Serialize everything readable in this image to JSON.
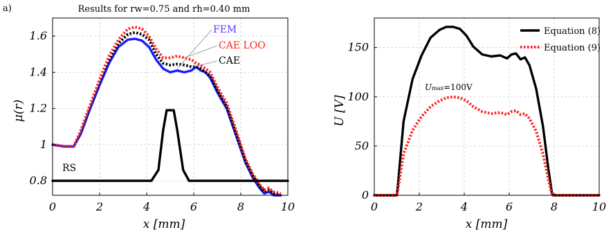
{
  "panel_label": "a)",
  "chart_data": [
    {
      "type": "line",
      "title": "Results for rw=0.75 and rh=0.40 mm",
      "xlabel": "x [mm]",
      "ylabel": "μ(r)",
      "xlim": [
        0,
        10
      ],
      "ylim": [
        0.72,
        1.7
      ],
      "xticks": [
        "0",
        "2",
        "4",
        "6",
        "8",
        "10"
      ],
      "yticks": [
        "0.8",
        "1",
        "1.2",
        "1.4",
        "1.6"
      ],
      "grid": true,
      "series": [
        {
          "name": "FEM",
          "color": "#1a1aff",
          "style": "solid",
          "label_color": "#6633ff",
          "x": [
            0,
            0.5,
            0.9,
            1.2,
            1.6,
            2.0,
            2.4,
            2.8,
            3.2,
            3.5,
            3.8,
            4.1,
            4.4,
            4.7,
            5.0,
            5.3,
            5.6,
            5.9,
            6.1,
            6.3,
            6.5,
            6.7,
            7.0,
            7.4,
            7.8,
            8.2,
            8.5,
            8.8,
            9.0,
            9.2,
            9.4,
            9.7
          ],
          "y": [
            1.0,
            0.99,
            0.99,
            1.06,
            1.2,
            1.33,
            1.45,
            1.54,
            1.58,
            1.585,
            1.575,
            1.54,
            1.47,
            1.42,
            1.4,
            1.41,
            1.4,
            1.41,
            1.43,
            1.41,
            1.4,
            1.37,
            1.29,
            1.2,
            1.05,
            0.9,
            0.82,
            0.76,
            0.73,
            0.74,
            0.72,
            0.72
          ]
        },
        {
          "name": "CAE",
          "color": "#000000",
          "style": "dotted",
          "label_color": "#000000",
          "x": [
            0,
            0.5,
            0.9,
            1.2,
            1.6,
            2.0,
            2.4,
            2.8,
            3.2,
            3.5,
            3.8,
            4.1,
            4.4,
            4.7,
            5.0,
            5.3,
            5.6,
            5.9,
            6.1,
            6.3,
            6.5,
            6.7,
            7.0,
            7.4,
            7.8,
            8.2,
            8.5,
            8.8,
            9.0,
            9.2,
            9.4,
            9.7
          ],
          "y": [
            1.0,
            0.99,
            0.99,
            1.07,
            1.21,
            1.35,
            1.47,
            1.56,
            1.61,
            1.62,
            1.61,
            1.58,
            1.5,
            1.45,
            1.44,
            1.445,
            1.44,
            1.43,
            1.43,
            1.42,
            1.4,
            1.38,
            1.3,
            1.21,
            1.06,
            0.91,
            0.83,
            0.77,
            0.74,
            0.75,
            0.73,
            0.72
          ]
        },
        {
          "name": "CAE LOO",
          "color": "#ff2020",
          "style": "dotted",
          "label_color": "#ff2020",
          "x": [
            0,
            0.5,
            0.9,
            1.2,
            1.6,
            2.0,
            2.4,
            2.8,
            3.2,
            3.5,
            3.8,
            4.1,
            4.4,
            4.7,
            5.0,
            5.3,
            5.6,
            5.9,
            6.1,
            6.3,
            6.5,
            6.7,
            7.0,
            7.4,
            7.8,
            8.2,
            8.5,
            8.8,
            9.0,
            9.2,
            9.4,
            9.7
          ],
          "y": [
            1.0,
            0.99,
            0.99,
            1.08,
            1.22,
            1.36,
            1.49,
            1.58,
            1.64,
            1.65,
            1.64,
            1.6,
            1.53,
            1.48,
            1.48,
            1.49,
            1.48,
            1.47,
            1.45,
            1.44,
            1.42,
            1.4,
            1.32,
            1.23,
            1.08,
            0.92,
            0.84,
            0.78,
            0.75,
            0.76,
            0.74,
            0.73
          ]
        },
        {
          "name": "RS",
          "color": "#000000",
          "style": "solid",
          "label_color": "#000000",
          "x": [
            0,
            4.2,
            4.5,
            4.7,
            4.85,
            5.0,
            5.15,
            5.3,
            5.55,
            5.8,
            10
          ],
          "y": [
            0.8,
            0.8,
            0.86,
            1.08,
            1.19,
            1.19,
            1.19,
            1.08,
            0.86,
            0.8,
            0.8
          ]
        }
      ]
    },
    {
      "type": "line",
      "title": "",
      "xlabel": "x [mm]",
      "ylabel": "U [V]",
      "xlim": [
        0,
        10
      ],
      "ylim": [
        0,
        180
      ],
      "xticks": [
        "0",
        "2",
        "4",
        "6",
        "8",
        "10"
      ],
      "yticks": [
        "0",
        "50",
        "100",
        "150"
      ],
      "grid": true,
      "legend_position": "top-right",
      "annotation": {
        "main": "U",
        "sub": "max",
        "rest": "=100V"
      },
      "series": [
        {
          "name": "Equation (8)",
          "color": "#000000",
          "style": "solid",
          "x": [
            0,
            1.0,
            1.05,
            1.3,
            1.7,
            2.1,
            2.5,
            2.9,
            3.2,
            3.5,
            3.8,
            4.1,
            4.4,
            4.8,
            5.2,
            5.6,
            5.9,
            6.1,
            6.3,
            6.5,
            6.7,
            6.9,
            7.2,
            7.5,
            7.75,
            7.9,
            7.95,
            10
          ],
          "y": [
            0,
            0,
            10,
            75,
            118,
            142,
            160,
            168,
            171,
            171,
            169,
            162,
            151,
            143,
            141,
            142,
            139,
            143,
            144,
            138,
            140,
            132,
            108,
            70,
            25,
            2,
            0,
            0
          ]
        },
        {
          "name": "Equation (9)",
          "color": "#ff2020",
          "style": "dotted",
          "x": [
            0,
            1.0,
            1.05,
            1.3,
            1.7,
            2.1,
            2.5,
            2.9,
            3.2,
            3.5,
            3.8,
            4.1,
            4.4,
            4.8,
            5.2,
            5.6,
            5.9,
            6.1,
            6.3,
            6.5,
            6.7,
            6.9,
            7.2,
            7.5,
            7.75,
            7.9,
            7.95,
            10
          ],
          "y": [
            0,
            0,
            5,
            42,
            66,
            80,
            90,
            96,
            99,
            100,
            99,
            96,
            90,
            85,
            83,
            84,
            82,
            85,
            86,
            82,
            83,
            78,
            65,
            42,
            15,
            1,
            0,
            0
          ]
        }
      ]
    }
  ]
}
